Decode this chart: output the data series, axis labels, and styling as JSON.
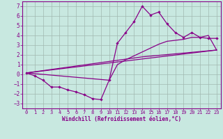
{
  "xlabel": "Windchill (Refroidissement éolien,°C)",
  "background_color": "#c8e8e0",
  "grid_color": "#a0b8b0",
  "line_color": "#880088",
  "xlim": [
    -0.5,
    23.5
  ],
  "ylim": [
    -3.5,
    7.5
  ],
  "xticks": [
    0,
    1,
    2,
    3,
    4,
    5,
    6,
    7,
    8,
    9,
    10,
    11,
    12,
    13,
    14,
    15,
    16,
    17,
    18,
    19,
    20,
    21,
    22,
    23
  ],
  "yticks": [
    -3,
    -2,
    -1,
    0,
    1,
    2,
    3,
    4,
    5,
    6,
    7
  ],
  "curve_main_x": [
    0,
    1,
    2,
    3,
    4,
    5,
    6,
    7,
    8,
    9,
    10,
    11,
    12,
    13,
    14,
    15,
    16,
    17,
    18,
    19,
    20,
    21,
    22,
    23
  ],
  "curve_main_y": [
    0.15,
    -0.15,
    -0.6,
    -1.3,
    -1.3,
    -1.6,
    -1.8,
    -2.1,
    -2.5,
    -2.6,
    -0.6,
    3.2,
    4.3,
    5.4,
    7.0,
    6.1,
    6.4,
    5.2,
    4.3,
    3.8,
    4.3,
    3.8,
    3.7,
    3.7
  ],
  "curve_smooth_x": [
    0,
    10,
    11,
    12,
    13,
    14,
    15,
    16,
    17,
    18,
    19,
    20,
    21,
    22,
    23
  ],
  "curve_smooth_y": [
    0.15,
    -0.6,
    1.0,
    1.5,
    1.9,
    2.3,
    2.7,
    3.1,
    3.4,
    3.5,
    3.6,
    3.8,
    3.8,
    4.0,
    2.5
  ],
  "line1_x": [
    0,
    23
  ],
  "line1_y": [
    0.15,
    2.5
  ],
  "line2_x": [
    0,
    14,
    23
  ],
  "line2_y": [
    0.15,
    1.8,
    2.5
  ]
}
